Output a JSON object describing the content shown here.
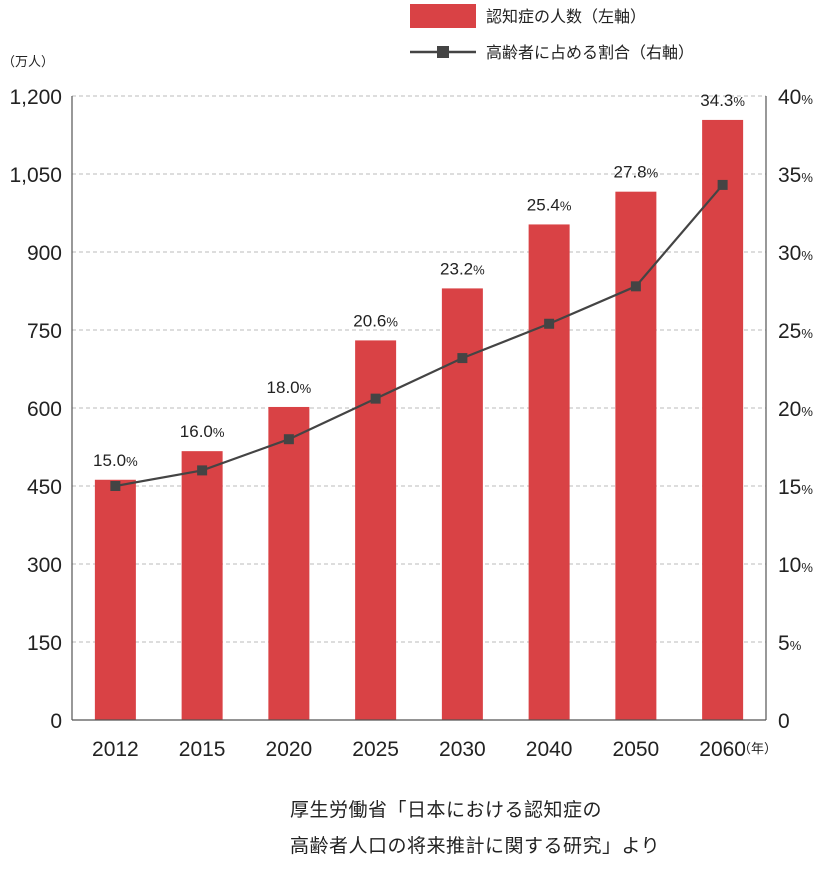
{
  "legend": {
    "bar_label": "認知症の人数（左軸）",
    "line_label": "高齢者に占める割合（右軸）"
  },
  "left_unit": "（万人）",
  "x_unit": "（年）",
  "colors": {
    "bar": "#d94245",
    "line": "#444444",
    "grid": "#bbbbbb"
  },
  "source": {
    "line1": "厚生労働省「日本における認知症の",
    "line2": "高齢者人口の将来推計に関する研究」より"
  },
  "chart_data": {
    "type": "bar",
    "categories": [
      "2012",
      "2015",
      "2020",
      "2025",
      "2030",
      "2040",
      "2050",
      "2060"
    ],
    "series": [
      {
        "name": "認知症の人数（左軸）",
        "axis": "left",
        "type": "bar",
        "values": [
          462,
          517,
          602,
          730,
          830,
          953,
          1016,
          1154
        ]
      },
      {
        "name": "高齢者に占める割合（右軸）",
        "axis": "right",
        "type": "line",
        "values": [
          15.0,
          16.0,
          18.0,
          20.6,
          23.2,
          25.4,
          27.8,
          34.3
        ]
      }
    ],
    "data_labels": [
      {
        "num": "15.0",
        "unit": "%"
      },
      {
        "num": "16.0",
        "unit": "%"
      },
      {
        "num": "18.0",
        "unit": "%"
      },
      {
        "num": "20.6",
        "unit": "%"
      },
      {
        "num": "23.2",
        "unit": "%"
      },
      {
        "num": "25.4",
        "unit": "%"
      },
      {
        "num": "27.8",
        "unit": "%"
      },
      {
        "num": "34.3",
        "unit": "%"
      }
    ],
    "left_axis": {
      "ylim": [
        0,
        1200
      ],
      "ticks": [
        0,
        150,
        300,
        450,
        600,
        750,
        900,
        1050,
        1200
      ],
      "tick_labels": [
        "0",
        "150",
        "300",
        "450",
        "600",
        "750",
        "900",
        "1,050",
        "1,200"
      ]
    },
    "right_axis": {
      "ylim": [
        0,
        40
      ],
      "ticks": [
        0,
        5,
        10,
        15,
        20,
        25,
        30,
        35,
        40
      ],
      "tick_labels": [
        {
          "num": "0",
          "unit": ""
        },
        {
          "num": "5",
          "unit": "%"
        },
        {
          "num": "10",
          "unit": "%"
        },
        {
          "num": "15",
          "unit": "%"
        },
        {
          "num": "20",
          "unit": "%"
        },
        {
          "num": "25",
          "unit": "%"
        },
        {
          "num": "30",
          "unit": "%"
        },
        {
          "num": "35",
          "unit": "%"
        },
        {
          "num": "40",
          "unit": "%"
        }
      ]
    },
    "grid": true,
    "legend_position": "top-right"
  }
}
